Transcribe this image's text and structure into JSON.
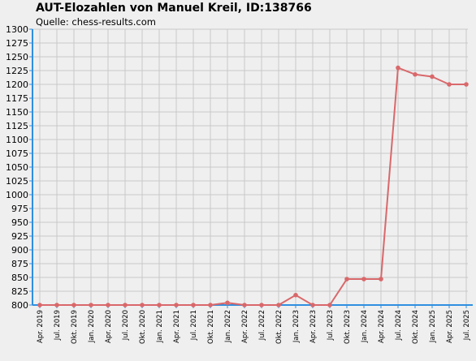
{
  "chart_data": {
    "type": "line",
    "title": "AUT-Elozahlen von Manuel Kreil, ID:138766",
    "subtitle": "Quelle: chess-results.com",
    "xlabel": "",
    "ylabel": "",
    "ylim": [
      800,
      1300
    ],
    "y_ticks": [
      800,
      825,
      850,
      875,
      900,
      925,
      950,
      975,
      1000,
      1025,
      1050,
      1075,
      1100,
      1125,
      1150,
      1175,
      1200,
      1225,
      1250,
      1275,
      1300
    ],
    "grid": true,
    "categories": [
      "Apr. 2019",
      "Jul. 2019",
      "Okt. 2019",
      "Jan. 2020",
      "Apr. 2020",
      "Jul. 2020",
      "Okt. 2020",
      "Jan. 2021",
      "Apr. 2021",
      "Jul. 2021",
      "Okt. 2021",
      "Jan. 2022",
      "Apr. 2022",
      "Jul. 2022",
      "Okt. 2022",
      "Jan. 2023",
      "Apr. 2023",
      "Jul. 2023",
      "Okt. 2023",
      "Jan. 2024",
      "Apr. 2024",
      "Jul. 2024",
      "Okt. 2024",
      "Jan. 2025",
      "Apr. 2025",
      "Jul. 2025"
    ],
    "series": [
      {
        "name": "",
        "values": [
          800,
          800,
          800,
          800,
          800,
          800,
          800,
          800,
          800,
          800,
          800,
          804,
          800,
          800,
          800,
          818,
          800,
          800,
          847,
          847,
          847,
          1230,
          1218,
          1214,
          1200,
          1200
        ]
      }
    ],
    "colors": {
      "line": "#d9686b",
      "axis": "#2f8fe0",
      "grid": "#c8c8c8",
      "background": "#efefef"
    }
  }
}
